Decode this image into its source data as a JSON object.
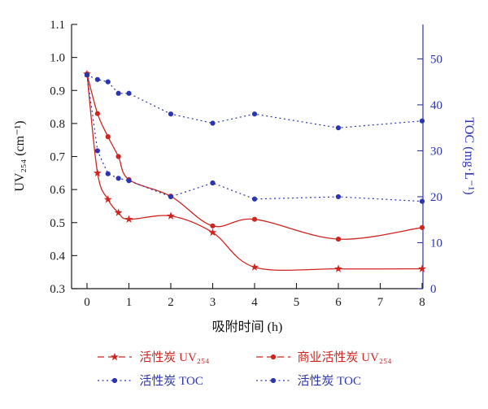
{
  "chart_data": {
    "type": "line",
    "title": "",
    "x_label": "吸附时间  (h)",
    "x_ticks": [
      0,
      1,
      2,
      3,
      4,
      5,
      6,
      7,
      8
    ],
    "left_axis": {
      "label": "UV₂₅₄ (cm⁻¹)",
      "min": 0.3,
      "max": 1.1,
      "ticks": [
        0.3,
        0.4,
        0.5,
        0.6,
        0.7,
        0.8,
        0.9,
        1.0,
        1.1
      ],
      "color": "#1a1a1a"
    },
    "right_axis": {
      "label": "TOC (mg·L⁻¹)",
      "min": 0,
      "max": 57.5,
      "ticks": [
        0,
        10,
        20,
        30,
        40,
        50
      ],
      "color": "#2b35af"
    },
    "x": [
      0,
      0.25,
      0.5,
      0.75,
      1,
      2,
      3,
      4,
      6,
      8
    ],
    "series": [
      {
        "name": "活性炭 UV₂₅₄",
        "axis": "left",
        "marker": "star",
        "line": "solid",
        "color": "#cf2521",
        "values": [
          0.95,
          0.65,
          0.57,
          0.53,
          0.51,
          0.52,
          0.47,
          0.365,
          0.36,
          0.36
        ]
      },
      {
        "name": "商业活性炭 UV₂₅₄",
        "axis": "left",
        "marker": "circle",
        "line": "solid",
        "color": "#cf2521",
        "values": [
          0.95,
          0.83,
          0.76,
          0.7,
          0.63,
          0.58,
          0.49,
          0.51,
          0.45,
          0.485
        ]
      },
      {
        "name": "活性炭 TOC",
        "axis": "right",
        "marker": "circle",
        "line": "dotted",
        "color": "#2b35af",
        "values": [
          46.5,
          45.5,
          45.0,
          42.5,
          42.5,
          38.0,
          36.0,
          38.0,
          35.0,
          36.5
        ]
      },
      {
        "name": "活性炭 TOC",
        "axis": "right",
        "marker": "circle",
        "line": "dotted",
        "color": "#2b35af",
        "values": [
          46.5,
          30.0,
          25.0,
          24.0,
          23.5,
          20.0,
          23.0,
          19.5,
          20.0,
          19.0
        ]
      }
    ],
    "legend": [
      {
        "label": "活性炭 UV₂₅₄",
        "marker": "star",
        "line": "dashed",
        "color": "#cf2521"
      },
      {
        "label": "商业活性炭 UV₂₅₄",
        "marker": "circle",
        "line": "dashed",
        "color": "#cf2521"
      },
      {
        "label": "活性炭 TOC",
        "marker": "circle",
        "line": "dotted",
        "color": "#2b35af"
      },
      {
        "label": "活性炭 TOC",
        "marker": "circle",
        "line": "dotted",
        "color": "#2b35af"
      }
    ]
  }
}
